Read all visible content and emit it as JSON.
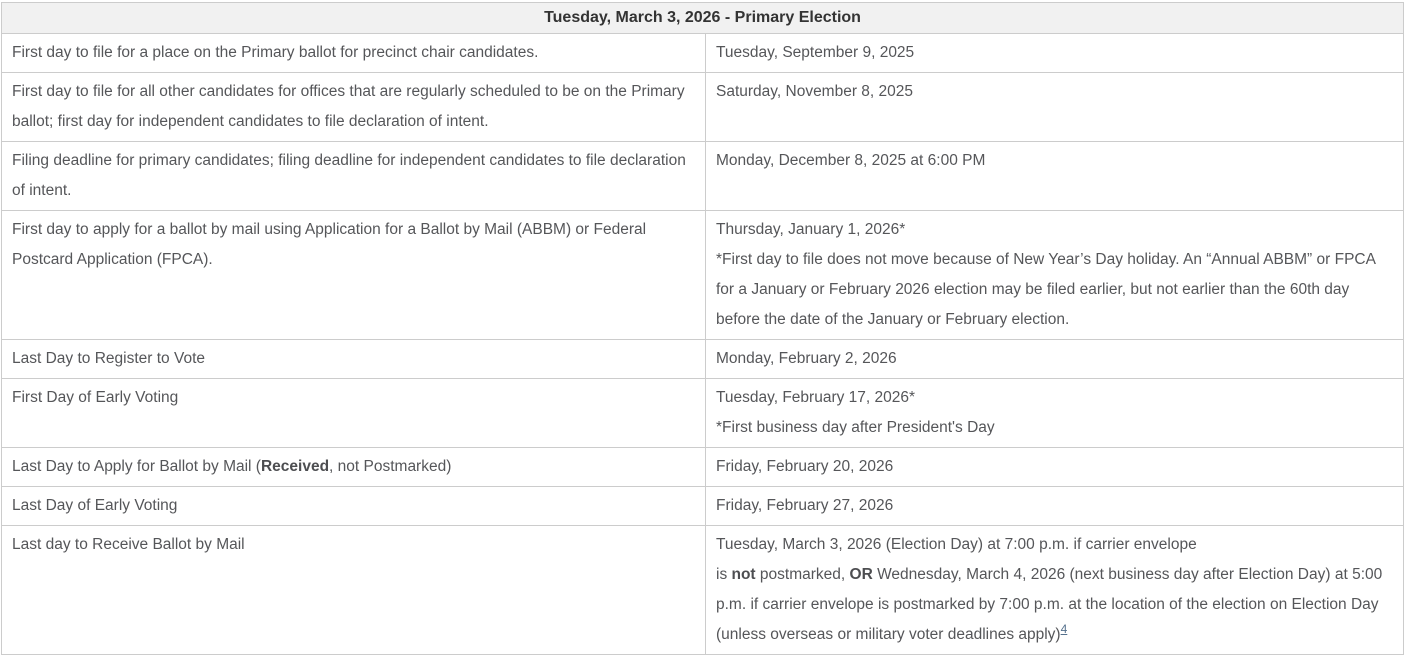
{
  "colors": {
    "border": "#cccccc",
    "header_background": "#f1f1f1",
    "header_text": "#333333",
    "body_text": "#555659",
    "footnote_link": "#54708c"
  },
  "table": {
    "title": "Tuesday, March 3, 2026 - Primary Election",
    "rows": [
      {
        "description": [
          {
            "t": "First day to file for a place on the Primary ballot for precinct chair candidates."
          }
        ],
        "date": [
          {
            "t": "Tuesday, September 9, 2025"
          }
        ]
      },
      {
        "description": [
          {
            "t": "First day to file for all other candidates for offices that are regularly scheduled to be on the Primary ballot; first day for independent candidates to file declaration of intent."
          }
        ],
        "date": [
          {
            "t": "Saturday, November 8, 2025"
          }
        ]
      },
      {
        "description": [
          {
            "t": "Filing deadline for primary candidates; filing deadline for independent candidates to file declaration of intent."
          }
        ],
        "date": [
          {
            "t": "Monday, December 8, 2025 at 6:00 PM"
          }
        ]
      },
      {
        "description": [
          {
            "t": "First day to apply for a ballot by mail using Application for a Ballot by Mail (ABBM) or Federal Postcard Application (FPCA)."
          }
        ],
        "date": [
          {
            "t": "Thursday, January 1, 2026*\n*First day to file does not move because of New Year’s Day holiday. An “Annual ABBM” or FPCA for a January or February 2026 election may be filed earlier, but not earlier than the 60th day before the date of the January or February election."
          }
        ]
      },
      {
        "description": [
          {
            "t": "Last Day to Register to Vote"
          }
        ],
        "date": [
          {
            "t": "Monday, February 2, 2026"
          }
        ]
      },
      {
        "description": [
          {
            "t": "First Day of Early Voting"
          }
        ],
        "date": [
          {
            "t": "Tuesday, February 17, 2026*\n*First business day after President's Day"
          }
        ]
      },
      {
        "description": [
          {
            "t": "Last Day to Apply for Ballot by Mail ("
          },
          {
            "t": "Received",
            "b": true
          },
          {
            "t": ", not Postmarked)"
          }
        ],
        "date": [
          {
            "t": "Friday, February 20, 2026"
          }
        ]
      },
      {
        "description": [
          {
            "t": "Last Day of Early Voting"
          }
        ],
        "date": [
          {
            "t": "Friday, February 27, 2026"
          }
        ]
      },
      {
        "description": [
          {
            "t": "Last day to Receive Ballot by Mail"
          }
        ],
        "date": [
          {
            "t": "Tuesday, March 3, 2026 (Election Day) at 7:00 p.m. if carrier envelope\nis "
          },
          {
            "t": "not",
            "b": true
          },
          {
            "t": " postmarked, "
          },
          {
            "t": "OR",
            "b": true
          },
          {
            "t": " Wednesday, March 4, 2026 (next business day after Election Day) at 5:00 p.m. if carrier envelope is postmarked by 7:00 p.m. at the location of the election on Election Day (unless overseas or military voter deadlines apply)"
          },
          {
            "t": "4",
            "sup": true
          }
        ]
      }
    ]
  }
}
